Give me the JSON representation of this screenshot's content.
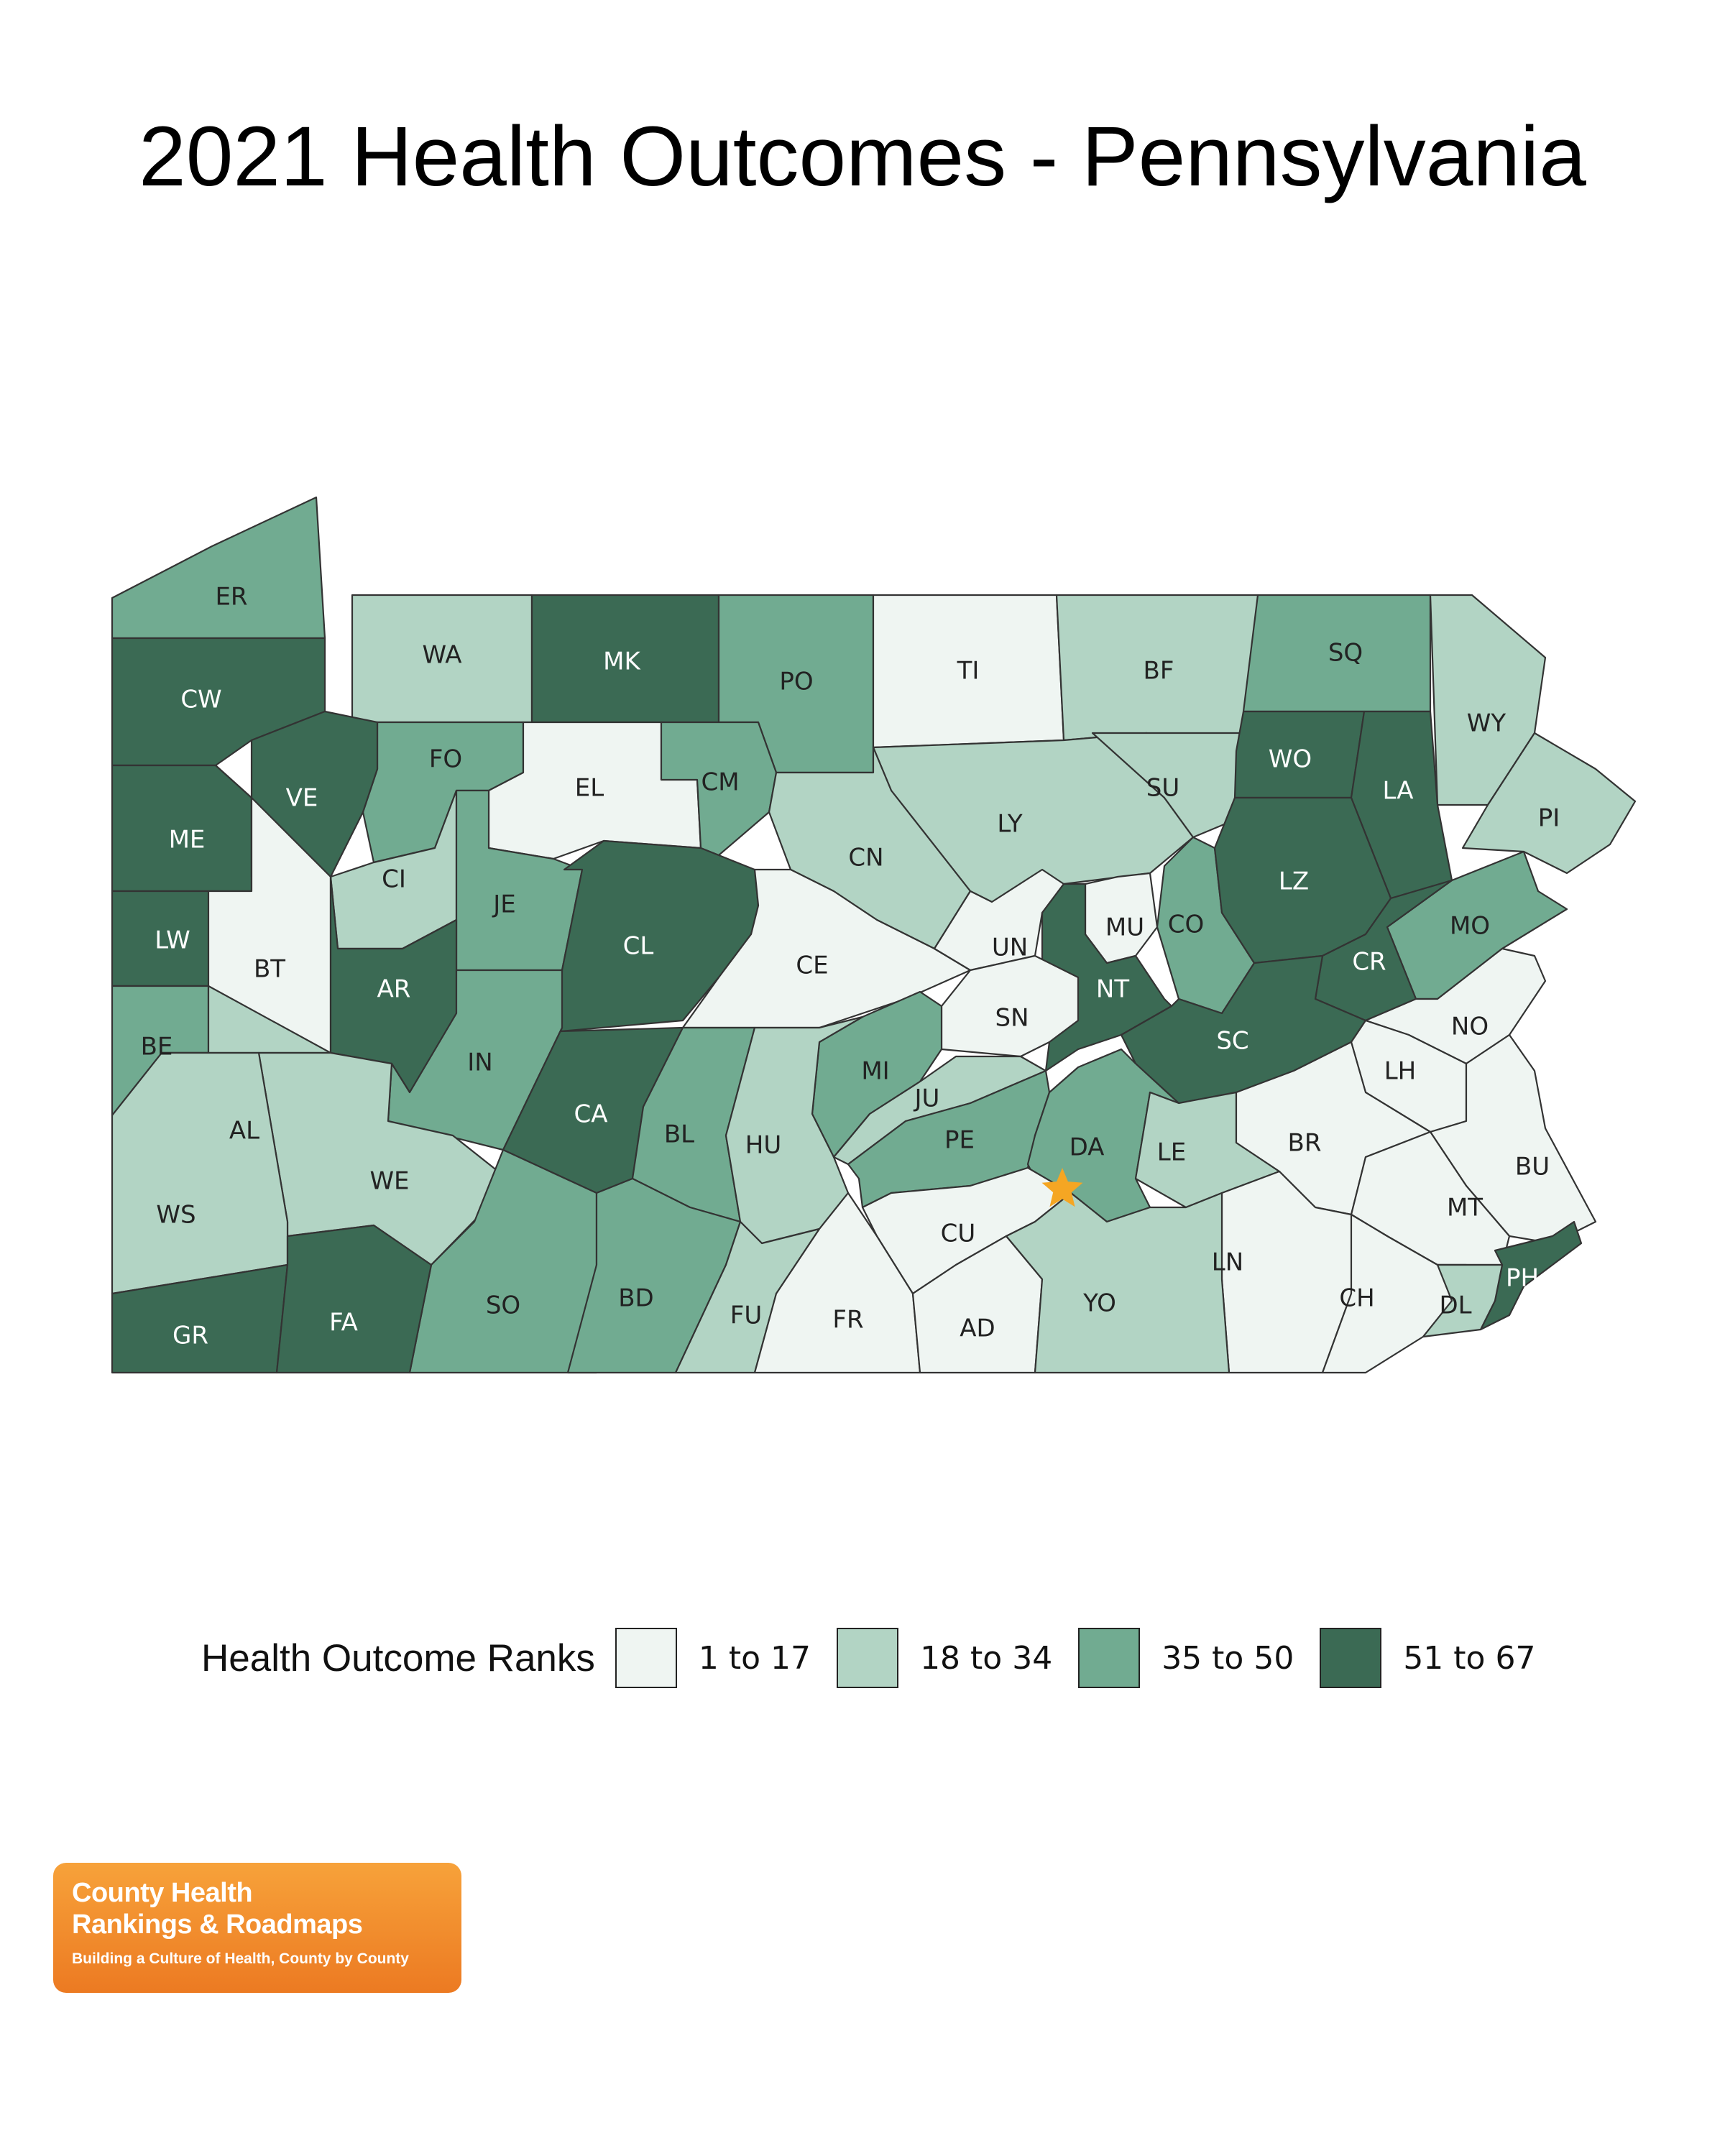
{
  "title": "2021 Health Outcomes - Pennsylvania",
  "legend": {
    "title": "Health Outcome Ranks",
    "bins": [
      {
        "label": "1 to 17",
        "color": "#eff5f2"
      },
      {
        "label": "18 to 34",
        "color": "#b2d4c4"
      },
      {
        "label": "35 to 50",
        "color": "#71ab91"
      },
      {
        "label": "51 to 67",
        "color": "#3b6a54"
      }
    ]
  },
  "counties": [
    {
      "code": "ER",
      "bin": 2
    },
    {
      "code": "WA",
      "bin": 1
    },
    {
      "code": "MK",
      "bin": 3
    },
    {
      "code": "PO",
      "bin": 2
    },
    {
      "code": "TI",
      "bin": 0
    },
    {
      "code": "BF",
      "bin": 1
    },
    {
      "code": "SQ",
      "bin": 2
    },
    {
      "code": "WY",
      "bin": 1
    },
    {
      "code": "CW",
      "bin": 3
    },
    {
      "code": "FO",
      "bin": 2
    },
    {
      "code": "EL",
      "bin": 0
    },
    {
      "code": "CM",
      "bin": 2
    },
    {
      "code": "LY",
      "bin": 1
    },
    {
      "code": "SU",
      "bin": 1
    },
    {
      "code": "WO",
      "bin": 3
    },
    {
      "code": "LA",
      "bin": 3
    },
    {
      "code": "PI",
      "bin": 1
    },
    {
      "code": "ME",
      "bin": 3
    },
    {
      "code": "VE",
      "bin": 3
    },
    {
      "code": "CI",
      "bin": 1
    },
    {
      "code": "JE",
      "bin": 2
    },
    {
      "code": "CN",
      "bin": 1
    },
    {
      "code": "CO",
      "bin": 2
    },
    {
      "code": "LZ",
      "bin": 3
    },
    {
      "code": "MO",
      "bin": 2
    },
    {
      "code": "LW",
      "bin": 3
    },
    {
      "code": "BT",
      "bin": 0
    },
    {
      "code": "AR",
      "bin": 3
    },
    {
      "code": "CL",
      "bin": 3
    },
    {
      "code": "CE",
      "bin": 0
    },
    {
      "code": "UN",
      "bin": 0
    },
    {
      "code": "MU",
      "bin": 0
    },
    {
      "code": "NT",
      "bin": 3
    },
    {
      "code": "CR",
      "bin": 3
    },
    {
      "code": "SN",
      "bin": 0
    },
    {
      "code": "SC",
      "bin": 3
    },
    {
      "code": "NO",
      "bin": 0
    },
    {
      "code": "BE",
      "bin": 2
    },
    {
      "code": "IN",
      "bin": 2
    },
    {
      "code": "MI",
      "bin": 2
    },
    {
      "code": "LH",
      "bin": 0
    },
    {
      "code": "AL",
      "bin": 1
    },
    {
      "code": "CA",
      "bin": 3
    },
    {
      "code": "BL",
      "bin": 2
    },
    {
      "code": "HU",
      "bin": 1
    },
    {
      "code": "JU",
      "bin": 1
    },
    {
      "code": "PE",
      "bin": 2
    },
    {
      "code": "DA",
      "bin": 2
    },
    {
      "code": "LE",
      "bin": 1
    },
    {
      "code": "BR",
      "bin": 0
    },
    {
      "code": "WE",
      "bin": 1
    },
    {
      "code": "BU",
      "bin": 0
    },
    {
      "code": "WS",
      "bin": 1
    },
    {
      "code": "MT",
      "bin": 0
    },
    {
      "code": "CU",
      "bin": 0
    },
    {
      "code": "LN",
      "bin": 0
    },
    {
      "code": "SO",
      "bin": 2
    },
    {
      "code": "BD",
      "bin": 2
    },
    {
      "code": "PH",
      "bin": 3
    },
    {
      "code": "CH",
      "bin": 0
    },
    {
      "code": "GR",
      "bin": 3
    },
    {
      "code": "FA",
      "bin": 3
    },
    {
      "code": "FU",
      "bin": 1
    },
    {
      "code": "FR",
      "bin": 0
    },
    {
      "code": "AD",
      "bin": 0
    },
    {
      "code": "YO",
      "bin": 1
    },
    {
      "code": "DL",
      "bin": 1
    }
  ],
  "capital_marker_color": "#f5a623",
  "logo": {
    "line1": "County Health",
    "line2": "Rankings & Roadmaps",
    "tagline": "Building a Culture of Health, County by County"
  }
}
